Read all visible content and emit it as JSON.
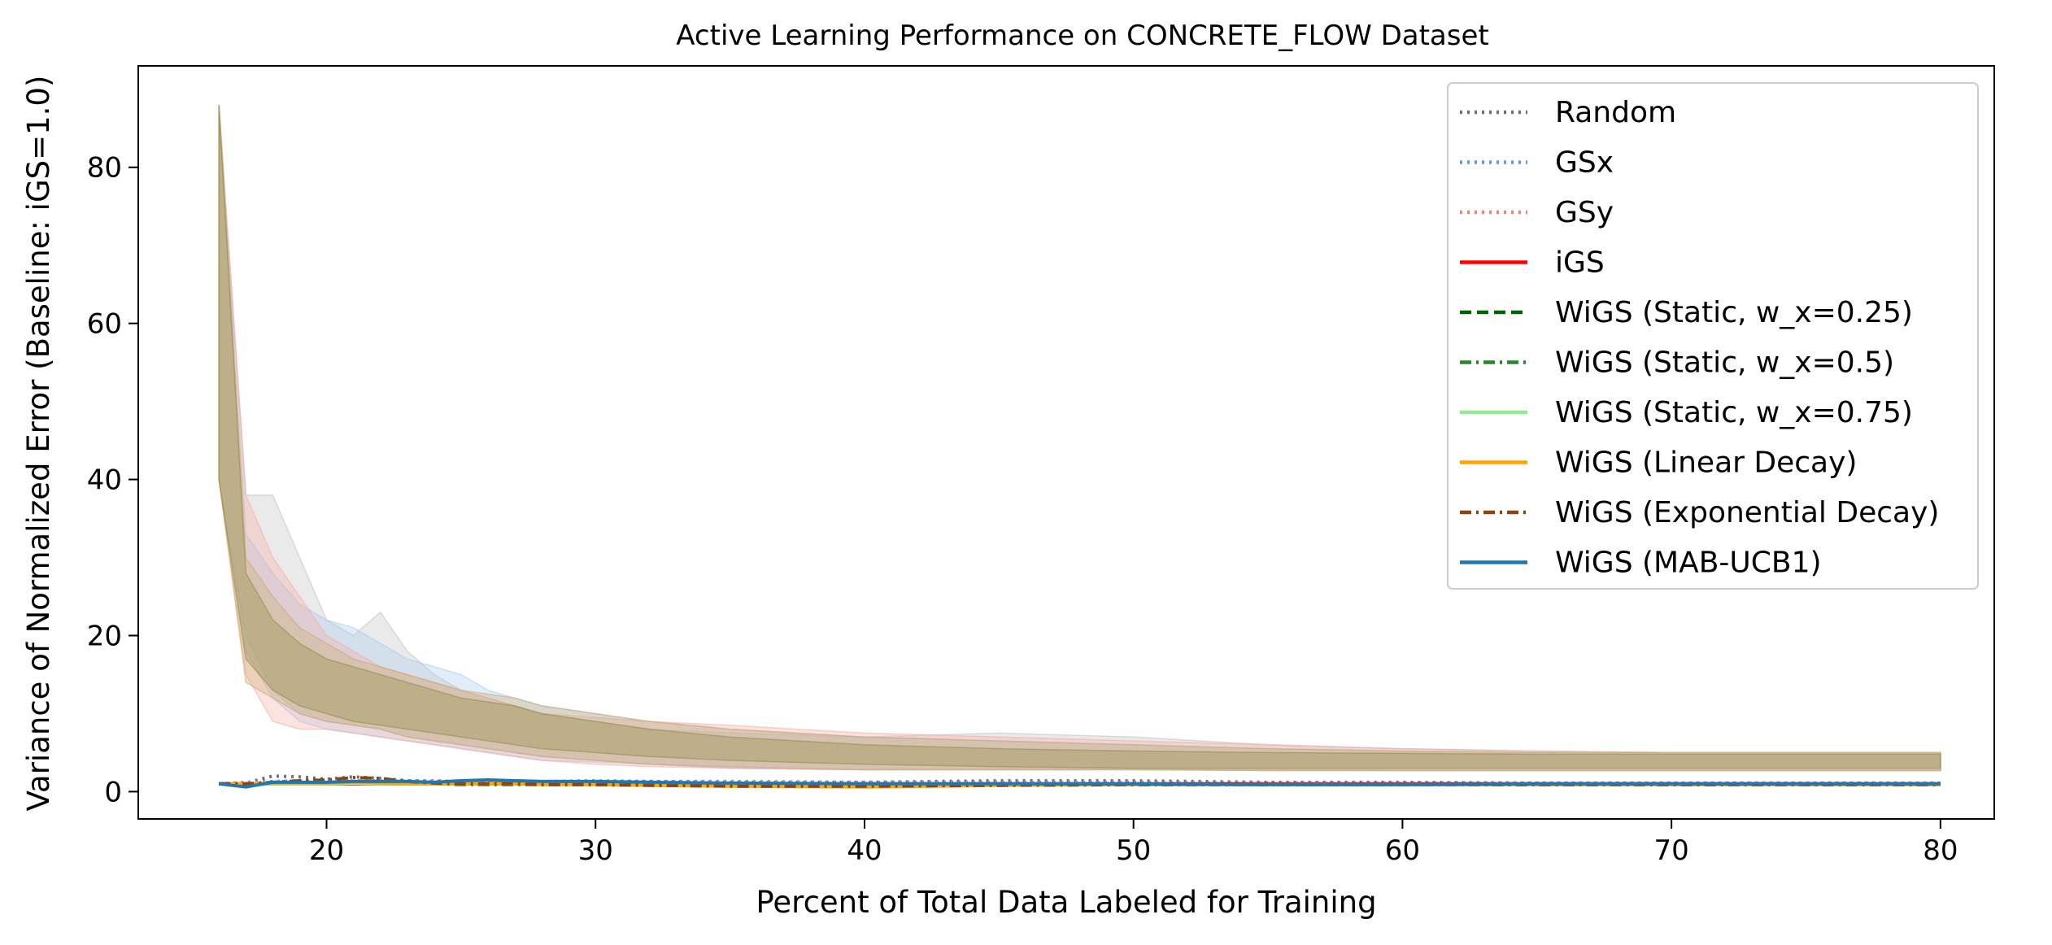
{
  "chart_data": {
    "type": "line",
    "title": "Active Learning Performance on CONCRETE_FLOW Dataset",
    "xlabel": "Percent of Total Data Labeled for Training",
    "ylabel": "Variance of Normalized Error (Baseline: iGS=1.0)",
    "xlim": [
      13,
      82
    ],
    "ylim": [
      -3.5,
      93
    ],
    "xticks": [
      20,
      30,
      40,
      50,
      60,
      70,
      80
    ],
    "yticks": [
      0,
      20,
      40,
      60,
      80
    ],
    "grid": false,
    "legend_position": "top-right",
    "x": [
      16,
      17,
      18,
      19,
      20,
      21,
      22,
      23,
      24,
      25,
      26,
      27,
      28,
      30,
      32,
      35,
      40,
      45,
      50,
      55,
      60,
      65,
      70,
      75,
      80
    ],
    "bands": [
      {
        "color": "#bdbdbd",
        "lower": [
          40,
          20,
          13,
          10,
          9,
          8.5,
          8,
          7,
          6.5,
          6,
          5.5,
          5,
          4.5,
          4,
          3.5,
          3,
          2.8,
          2.9,
          3,
          2.8,
          2.7,
          2.7,
          2.7,
          2.7,
          2.7
        ],
        "upper": [
          88,
          38,
          38,
          30,
          22,
          20,
          23,
          18,
          15,
          13,
          12,
          11,
          10,
          9,
          8,
          7.5,
          7,
          7.5,
          7,
          6,
          5.5,
          5.2,
          5,
          5,
          5
        ]
      },
      {
        "color": "#a6c8f0",
        "lower": [
          40,
          18,
          12,
          9,
          8,
          7.5,
          7,
          6.5,
          6,
          5.5,
          5,
          4.5,
          4,
          3.8,
          3.5,
          3,
          2.8,
          2.8,
          2.8,
          2.7,
          2.7,
          2.7,
          2.7,
          2.7,
          2.7
        ],
        "upper": [
          88,
          33,
          28,
          24,
          22,
          21,
          19,
          17,
          16,
          15,
          13,
          12,
          11,
          10,
          9,
          8,
          7,
          6.5,
          6,
          5.5,
          5.2,
          5,
          5,
          5,
          5
        ]
      },
      {
        "color": "#f7a8a0",
        "lower": [
          40,
          15,
          9,
          8,
          8,
          7.5,
          7,
          6.5,
          6,
          5.5,
          5,
          4.5,
          4,
          3.5,
          3.2,
          3,
          2.8,
          2.8,
          2.8,
          2.7,
          2.7,
          2.7,
          2.7,
          2.7,
          2.7
        ],
        "upper": [
          88,
          38,
          30,
          25,
          20,
          18,
          16,
          15,
          14,
          13,
          12,
          11,
          10,
          9.5,
          9,
          8.5,
          7.5,
          7,
          6.5,
          6,
          5.5,
          5.2,
          5,
          5,
          5
        ]
      },
      {
        "color": "#c7a86a",
        "lower": [
          40,
          14,
          12,
          10,
          9,
          8.5,
          8,
          7,
          6.5,
          6,
          5.5,
          5,
          4.5,
          4,
          3.5,
          3.2,
          2.8,
          2.8,
          2.8,
          2.7,
          2.7,
          2.7,
          2.7,
          2.7,
          2.7
        ],
        "upper": [
          88,
          30,
          25,
          21,
          19,
          17,
          16,
          15,
          14,
          13,
          12.5,
          12,
          11,
          10,
          9,
          8,
          7,
          6.5,
          6,
          5.5,
          5.2,
          5,
          5,
          5,
          5
        ]
      },
      {
        "color": "#8a8a3a",
        "lower": [
          40,
          17,
          13,
          11,
          10,
          9,
          8.5,
          8,
          7.5,
          7,
          6.5,
          6,
          5.5,
          5,
          4.5,
          4,
          3.5,
          3.2,
          3,
          3,
          3,
          3,
          3,
          3,
          3
        ],
        "upper": [
          88,
          28,
          22,
          19,
          17,
          16,
          15,
          14,
          13,
          12,
          11.5,
          11,
          10,
          9,
          8,
          7,
          6,
          5.5,
          5.2,
          5,
          4.9,
          4.8,
          4.8,
          4.8,
          4.8
        ]
      }
    ],
    "series": [
      {
        "name": "Random",
        "color": "#707070",
        "dash": "dotted",
        "values": [
          1.0,
          1.1,
          2.0,
          1.9,
          1.6,
          1.9,
          1.7,
          1.4,
          1.3,
          1.3,
          1.2,
          1.2,
          1.2,
          1.3,
          1.3,
          1.2,
          1.2,
          1.4,
          1.4,
          1.2,
          1.2,
          1.1,
          1.1,
          1.1,
          1.1
        ]
      },
      {
        "name": "GSx",
        "color": "#6495ed",
        "dash": "dotted",
        "values": [
          1.0,
          1.2,
          1.3,
          1.4,
          1.3,
          1.3,
          1.4,
          1.4,
          1.4,
          1.3,
          1.3,
          1.3,
          1.3,
          1.4,
          1.3,
          1.3,
          1.2,
          1.2,
          1.2,
          1.1,
          1.1,
          1.1,
          1.1,
          1.1,
          1.1
        ]
      },
      {
        "name": "GSy",
        "color": "#fa8072",
        "dash": "dotted",
        "values": [
          1.0,
          1.1,
          1.2,
          1.3,
          1.3,
          1.4,
          1.4,
          1.3,
          1.3,
          1.3,
          1.2,
          1.2,
          1.2,
          1.2,
          1.2,
          1.2,
          1.1,
          1.1,
          1.1,
          1.1,
          1.1,
          1.1,
          1.1,
          1.1,
          1.1
        ]
      },
      {
        "name": "iGS",
        "color": "#ff0000",
        "dash": "solid",
        "values": [
          1.0,
          1.0,
          1.0,
          1.0,
          1.0,
          1.0,
          1.0,
          1.0,
          1.0,
          1.0,
          1.0,
          1.0,
          1.0,
          1.0,
          1.0,
          1.0,
          1.0,
          1.0,
          1.0,
          1.0,
          1.0,
          1.0,
          1.0,
          1.0,
          1.0
        ]
      },
      {
        "name": "WiGS (Static, w_x=0.25)",
        "color": "#006400",
        "dash": "dashed",
        "values": [
          1.0,
          0.9,
          1.1,
          1.2,
          1.1,
          1.3,
          1.2,
          1.1,
          1.0,
          1.0,
          1.0,
          1.0,
          1.0,
          0.9,
          0.9,
          0.8,
          0.8,
          0.9,
          0.9,
          0.9,
          0.9,
          0.9,
          0.9,
          0.9,
          0.9
        ]
      },
      {
        "name": "WiGS (Static, w_x=0.5)",
        "color": "#228b22",
        "dash": "dashdot",
        "values": [
          1.0,
          0.9,
          1.0,
          1.1,
          1.0,
          1.1,
          1.0,
          1.0,
          1.0,
          0.9,
          0.9,
          0.9,
          0.9,
          0.9,
          0.9,
          0.9,
          0.9,
          0.9,
          0.9,
          0.9,
          0.9,
          0.9,
          0.9,
          0.9,
          0.9
        ]
      },
      {
        "name": "WiGS (Static, w_x=0.75)",
        "color": "#90ee90",
        "dash": "solid",
        "values": [
          1.0,
          0.9,
          1.0,
          1.0,
          1.0,
          1.1,
          1.0,
          1.0,
          1.0,
          1.0,
          1.0,
          1.0,
          1.0,
          1.0,
          1.0,
          0.9,
          0.9,
          0.9,
          0.9,
          0.9,
          0.9,
          0.9,
          0.9,
          0.9,
          0.9
        ]
      },
      {
        "name": "WiGS (Linear Decay)",
        "color": "#ffa500",
        "dash": "solid",
        "values": [
          1.0,
          1.0,
          1.1,
          1.1,
          1.1,
          1.2,
          1.1,
          1.0,
          1.0,
          1.0,
          1.0,
          1.0,
          0.9,
          0.9,
          0.8,
          0.7,
          0.6,
          0.8,
          0.9,
          0.9,
          0.9,
          0.9,
          0.9,
          0.9,
          0.9
        ]
      },
      {
        "name": "WiGS (Exponential Decay)",
        "color": "#8b4513",
        "dash": "dashdot",
        "values": [
          1.0,
          1.0,
          1.2,
          1.4,
          1.5,
          1.8,
          1.7,
          1.3,
          1.1,
          1.0,
          1.0,
          1.0,
          0.9,
          0.9,
          0.8,
          0.7,
          0.7,
          0.8,
          0.9,
          0.9,
          0.9,
          0.9,
          0.9,
          0.9,
          0.9
        ]
      },
      {
        "name": "WiGS (MAB-UCB1)",
        "color": "#1f77b4",
        "dash": "solid",
        "values": [
          1.0,
          0.6,
          1.2,
          1.2,
          1.2,
          1.3,
          1.3,
          1.3,
          1.2,
          1.4,
          1.5,
          1.4,
          1.3,
          1.3,
          1.2,
          1.1,
          1.0,
          1.0,
          1.0,
          0.9,
          0.9,
          1.0,
          1.0,
          1.0,
          1.0
        ]
      }
    ]
  }
}
